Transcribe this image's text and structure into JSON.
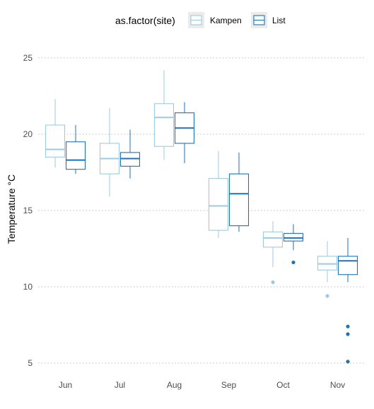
{
  "chart_data": {
    "type": "boxplot",
    "ylabel": "Temperature °C",
    "xlabel": "",
    "ylim": [
      4.4,
      26.2
    ],
    "yticks": [
      5,
      10,
      15,
      20,
      25
    ],
    "grid": "horizontal dotted",
    "legend": {
      "position": "top",
      "title": "as.factor(site)",
      "entries": [
        "Kampen",
        "List"
      ]
    },
    "categories": [
      "Jun",
      "Jul",
      "Aug",
      "Sep",
      "Oct",
      "Nov"
    ],
    "series": [
      {
        "name": "Kampen",
        "color": "#9ecae1",
        "boxes": [
          {
            "min": 17.8,
            "q1": 18.5,
            "median": 19.0,
            "q3": 20.6,
            "max": 22.3,
            "outliers": []
          },
          {
            "min": 15.9,
            "q1": 17.4,
            "median": 18.4,
            "q3": 19.4,
            "max": 21.7,
            "outliers": []
          },
          {
            "min": 18.3,
            "q1": 19.2,
            "median": 21.1,
            "q3": 22.0,
            "max": 24.2,
            "outliers": []
          },
          {
            "min": 13.2,
            "q1": 13.7,
            "median": 15.3,
            "q3": 17.1,
            "max": 18.9,
            "outliers": []
          },
          {
            "min": 11.3,
            "q1": 12.6,
            "median": 13.2,
            "q3": 13.6,
            "max": 14.3,
            "outliers": [
              10.3
            ]
          },
          {
            "min": 10.3,
            "q1": 11.1,
            "median": 11.5,
            "q3": 12.0,
            "max": 13.0,
            "outliers": [
              9.4
            ]
          }
        ]
      },
      {
        "name": "List",
        "color": "#2171b5",
        "boxes": [
          {
            "min": 17.4,
            "q1": 17.7,
            "median": 18.3,
            "q3": 19.5,
            "max": 20.6,
            "outliers": []
          },
          {
            "min": 17.1,
            "q1": 17.9,
            "median": 18.4,
            "q3": 18.8,
            "max": 20.3,
            "outliers": []
          },
          {
            "min": 18.1,
            "q1": 19.4,
            "median": 20.4,
            "q3": 21.4,
            "max": 22.1,
            "outliers": []
          },
          {
            "min": 13.6,
            "q1": 14.0,
            "median": 16.1,
            "q3": 17.4,
            "max": 18.8,
            "outliers": []
          },
          {
            "min": 12.4,
            "q1": 13.0,
            "median": 13.2,
            "q3": 13.5,
            "max": 14.1,
            "outliers": [
              11.6
            ]
          },
          {
            "min": 10.3,
            "q1": 10.8,
            "median": 11.7,
            "q3": 12.0,
            "max": 13.2,
            "outliers": [
              7.4,
              6.9,
              5.1
            ]
          }
        ]
      }
    ]
  }
}
